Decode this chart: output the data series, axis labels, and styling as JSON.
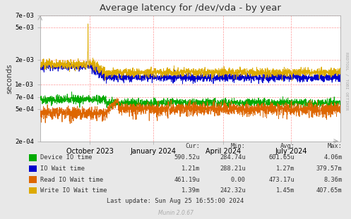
{
  "title": "Average latency for /dev/vda - by year",
  "ylabel": "seconds",
  "bg_color": "#e8e8e8",
  "plot_bg_color": "#ffffff",
  "y_min": 0.0002,
  "y_max": 0.007,
  "yticks": [
    0.0002,
    0.0005,
    0.0007,
    0.001,
    0.002,
    0.005,
    0.007
  ],
  "ytick_labels": [
    "2e-04",
    "5e-04",
    "7e-04",
    "1e-03",
    "2e-03",
    "5e-03",
    "7e-03"
  ],
  "xtick_positions": [
    0.165,
    0.375,
    0.61,
    0.835
  ],
  "xtick_labels": [
    "October 2023",
    "January 2024",
    "April 2024",
    "July 2024"
  ],
  "line_colors": {
    "device_io": "#00aa00",
    "io_wait": "#0000cc",
    "read_io_wait": "#dd6600",
    "write_io_wait": "#ddaa00"
  },
  "legend": [
    {
      "label": "Device IO time",
      "color": "#00aa00"
    },
    {
      "label": "IO Wait time",
      "color": "#0000cc"
    },
    {
      "label": "Read IO Wait time",
      "color": "#dd6600"
    },
    {
      "label": "Write IO Wait time",
      "color": "#ddaa00"
    }
  ],
  "stats_headers": [
    "Cur:",
    "Min:",
    "Avg:",
    "Max:"
  ],
  "stats": [
    {
      "cur": "590.52u",
      "min": "284.74u",
      "avg": "601.65u",
      "max": "4.06m"
    },
    {
      "cur": "1.21m",
      "min": "288.21u",
      "avg": "1.27m",
      "max": "379.57m"
    },
    {
      "cur": "461.19u",
      "min": "0.00",
      "avg": "473.17u",
      "max": "8.36m"
    },
    {
      "cur": "1.39m",
      "min": "242.32u",
      "avg": "1.45m",
      "max": "407.65m"
    }
  ],
  "last_update": "Last update: Sun Aug 25 16:55:00 2024",
  "rrdtool_label": "RRDTOOL / TOBI OETIKER",
  "munin_label": "Munin 2.0.67"
}
